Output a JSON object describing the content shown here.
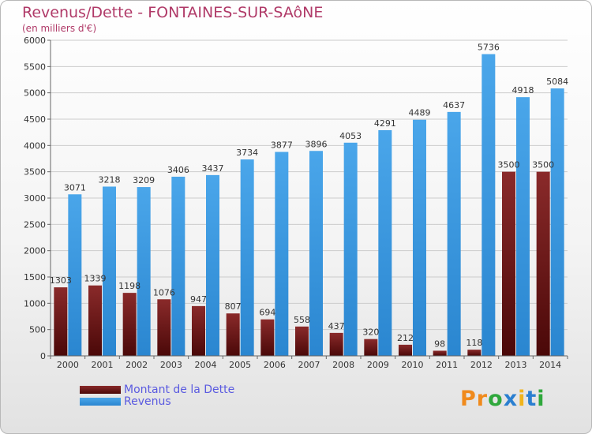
{
  "chart_data": {
    "type": "bar",
    "title": "Revenus/Dette - FONTAINES-SUR-SAôNE",
    "subtitle": "(en milliers d'€)",
    "categories": [
      "2000",
      "2001",
      "2002",
      "2003",
      "2004",
      "2005",
      "2006",
      "2007",
      "2008",
      "2009",
      "2010",
      "2011",
      "2012",
      "2013",
      "2014"
    ],
    "series": [
      {
        "name": "Montant de la Dette",
        "color": "#7a1c1c",
        "values": [
          1303,
          1339,
          1198,
          1076,
          947,
          807,
          694,
          558,
          437,
          320,
          212,
          98,
          118,
          3500,
          3500
        ],
        "labels": [
          "1303",
          "1339",
          "1198",
          "1076",
          "947",
          "807",
          "694",
          "558",
          "437",
          "320",
          "212",
          "98",
          "118",
          "3500",
          "3500"
        ]
      },
      {
        "name": "Revenus",
        "color": "#3d9be0",
        "values": [
          3071,
          3218,
          3209,
          3406,
          3437,
          3734,
          3877,
          3896,
          4053,
          4291,
          4489,
          4637,
          5736,
          4918,
          5084
        ],
        "labels": [
          "3071",
          "3218",
          "3209",
          "3406",
          "3437",
          "3734",
          "3877",
          "3896",
          "4053",
          "4291",
          "4489",
          "4637",
          "5736",
          "4918",
          "5084"
        ]
      }
    ],
    "ylim": [
      0,
      6000
    ],
    "yticks": [
      0,
      500,
      1000,
      1500,
      2000,
      2500,
      3000,
      3500,
      4000,
      4500,
      5000,
      5500,
      6000
    ],
    "grid": true,
    "legend": "bottom-left"
  },
  "logo": {
    "letters": [
      {
        "ch": "P",
        "color": "#f08a1c"
      },
      {
        "ch": "r",
        "color": "#f08a1c"
      },
      {
        "ch": "o",
        "color": "#2fa83c"
      },
      {
        "ch": "x",
        "color": "#2a7fd0"
      },
      {
        "ch": "i",
        "color": "#f0b41c"
      },
      {
        "ch": "t",
        "color": "#2a7fd0"
      },
      {
        "ch": "i",
        "color": "#2fa83c"
      }
    ]
  }
}
